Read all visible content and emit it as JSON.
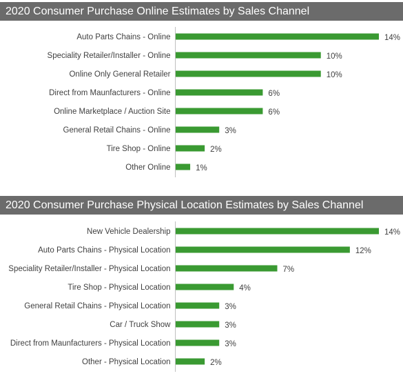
{
  "chart_data": [
    {
      "type": "bar",
      "orientation": "horizontal",
      "title": "2020 Consumer Purchase Online Estimates by Sales Channel",
      "categories": [
        "Auto Parts Chains - Online",
        "Speciality Retailer/Installer - Online",
        "Online Only General Retailer",
        "Direct from Maunfacturers - Online",
        "Online Marketplace /  Auction Site",
        "General Retail Chains - Online",
        "Tire Shop - Online",
        "Other Online"
      ],
      "values": [
        14,
        10,
        10,
        6,
        6,
        3,
        2,
        1
      ],
      "value_labels": [
        "14%",
        "10%",
        "10%",
        "6%",
        "6%",
        "3%",
        "2%",
        "1%"
      ],
      "unit": "%",
      "xlim": [
        0,
        14
      ],
      "grid": false,
      "bar_color": "#3a9a32"
    },
    {
      "type": "bar",
      "orientation": "horizontal",
      "title": "2020 Consumer Purchase Physical Location Estimates by Sales Channel",
      "categories": [
        "New Vehicle Dealership",
        "Auto Parts Chains - Physical Location",
        "Speciality Retailer/Installer - Physical Location",
        "Tire Shop - Physical Location",
        "General Retail Chains - Physical Location",
        "Car / Truck Show",
        "Direct from Maunfacturers - Physical Location",
        "Other - Physical Location"
      ],
      "values": [
        14,
        12,
        7,
        4,
        3,
        3,
        3,
        2
      ],
      "value_labels": [
        "14%",
        "12%",
        "7%",
        "4%",
        "3%",
        "3%",
        "3%",
        "2%"
      ],
      "unit": "%",
      "xlim": [
        0,
        14
      ],
      "grid": false,
      "bar_color": "#3a9a32"
    }
  ]
}
